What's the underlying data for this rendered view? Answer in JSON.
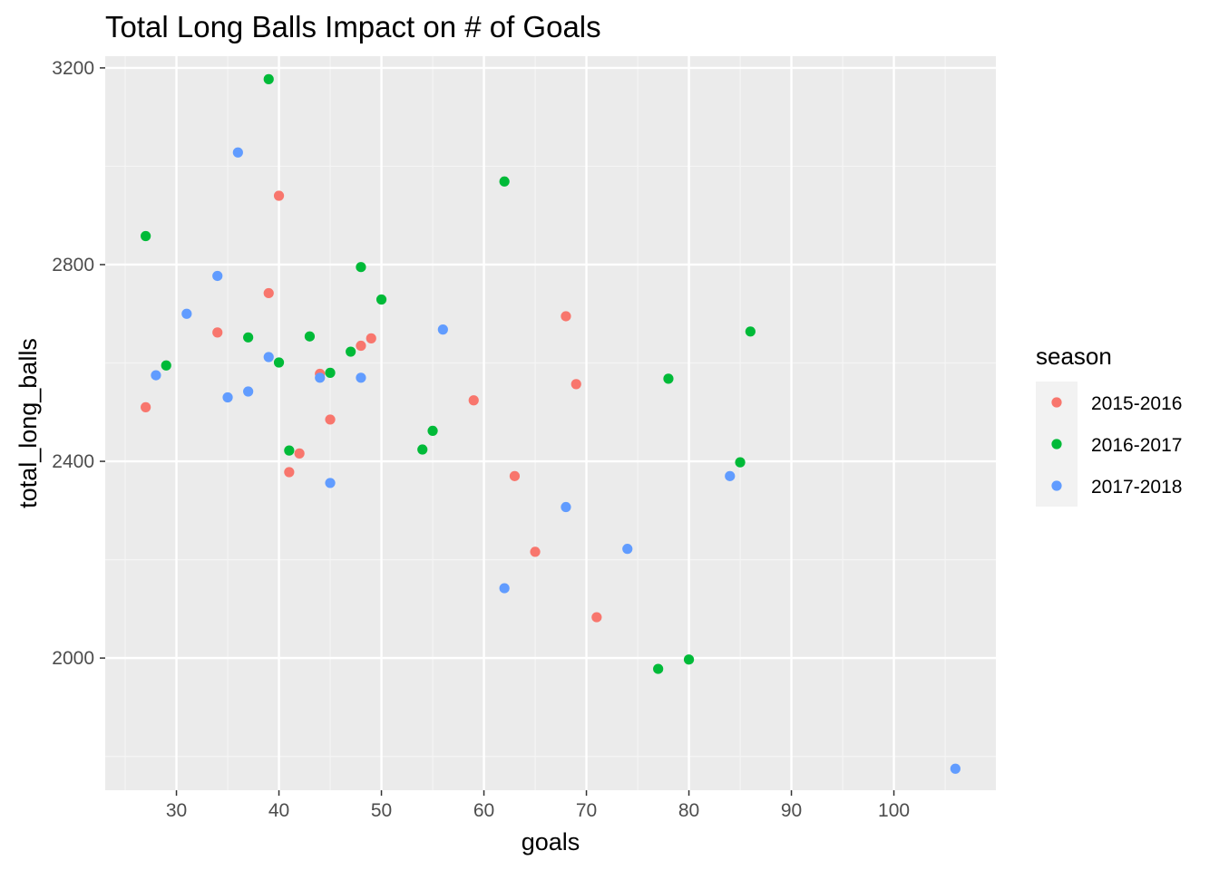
{
  "chart_data": {
    "type": "scatter",
    "title": "Total Long Balls Impact on # of Goals",
    "xlabel": "goals",
    "ylabel": "total_long_balls",
    "xlim": [
      23.05,
      109.95
    ],
    "ylim": [
      1731.2,
      3223.8
    ],
    "x_ticks": [
      30,
      40,
      50,
      60,
      70,
      80,
      90,
      100
    ],
    "y_ticks": [
      2000,
      2400,
      2800,
      3200
    ],
    "x_tick_labels": [
      "30",
      "40",
      "50",
      "60",
      "70",
      "80",
      "90",
      "100"
    ],
    "y_tick_labels": [
      "2000",
      "2400",
      "2800",
      "3200"
    ],
    "grid": true,
    "legend": {
      "title": "season",
      "position": "right",
      "entries": [
        "2015-2016",
        "2016-2017",
        "2017-2018"
      ]
    },
    "colors": {
      "2015-2016": "#F8766D",
      "2016-2017": "#00BA38",
      "2017-2018": "#619CFF",
      "panel_background": "#EBEBEB",
      "grid_major": "#FFFFFF",
      "grid_minor": "#F5F5F5",
      "legend_key_background": "#F2F2F2"
    },
    "series": [
      {
        "name": "2015-2016",
        "points": [
          {
            "x": 27,
            "y": 2510
          },
          {
            "x": 34,
            "y": 2662
          },
          {
            "x": 39,
            "y": 2742
          },
          {
            "x": 40,
            "y": 2940
          },
          {
            "x": 41,
            "y": 2378
          },
          {
            "x": 42,
            "y": 2416
          },
          {
            "x": 44,
            "y": 2578
          },
          {
            "x": 45,
            "y": 2485
          },
          {
            "x": 48,
            "y": 2635
          },
          {
            "x": 49,
            "y": 2650
          },
          {
            "x": 59,
            "y": 2524
          },
          {
            "x": 63,
            "y": 2370
          },
          {
            "x": 65,
            "y": 2216
          },
          {
            "x": 68,
            "y": 2695
          },
          {
            "x": 69,
            "y": 2557
          },
          {
            "x": 71,
            "y": 2083
          }
        ]
      },
      {
        "name": "2016-2017",
        "points": [
          {
            "x": 27,
            "y": 2858
          },
          {
            "x": 29,
            "y": 2595
          },
          {
            "x": 37,
            "y": 2652
          },
          {
            "x": 39,
            "y": 3177
          },
          {
            "x": 40,
            "y": 2601
          },
          {
            "x": 41,
            "y": 2422
          },
          {
            "x": 43,
            "y": 2654
          },
          {
            "x": 45,
            "y": 2580
          },
          {
            "x": 47,
            "y": 2623
          },
          {
            "x": 48,
            "y": 2795
          },
          {
            "x": 50,
            "y": 2729
          },
          {
            "x": 54,
            "y": 2424
          },
          {
            "x": 55,
            "y": 2462
          },
          {
            "x": 62,
            "y": 2969
          },
          {
            "x": 77,
            "y": 1978
          },
          {
            "x": 78,
            "y": 2568
          },
          {
            "x": 80,
            "y": 1997
          },
          {
            "x": 85,
            "y": 2398
          },
          {
            "x": 86,
            "y": 2664
          }
        ]
      },
      {
        "name": "2017-2018",
        "points": [
          {
            "x": 28,
            "y": 2575
          },
          {
            "x": 31,
            "y": 2700
          },
          {
            "x": 34,
            "y": 2777
          },
          {
            "x": 35,
            "y": 2530
          },
          {
            "x": 36,
            "y": 3028
          },
          {
            "x": 37,
            "y": 2542
          },
          {
            "x": 39,
            "y": 2612
          },
          {
            "x": 44,
            "y": 2570
          },
          {
            "x": 45,
            "y": 2356
          },
          {
            "x": 48,
            "y": 2570
          },
          {
            "x": 56,
            "y": 2668
          },
          {
            "x": 62,
            "y": 2142
          },
          {
            "x": 68,
            "y": 2307
          },
          {
            "x": 74,
            "y": 2222
          },
          {
            "x": 84,
            "y": 2370
          },
          {
            "x": 106,
            "y": 1775
          }
        ]
      }
    ]
  }
}
